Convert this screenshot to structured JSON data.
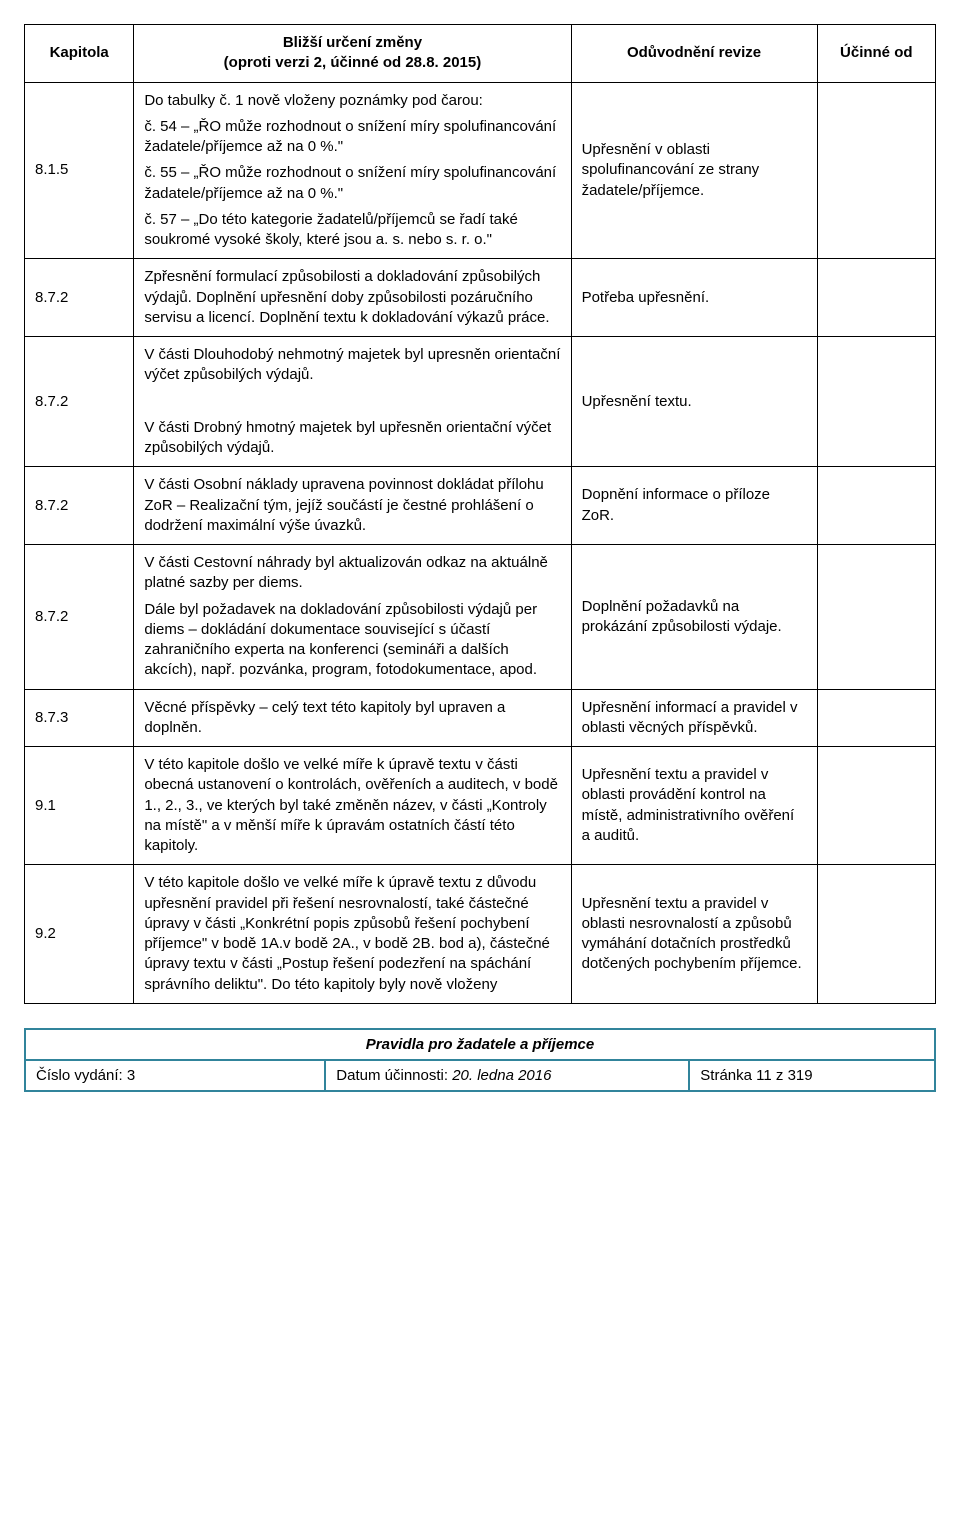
{
  "header": {
    "col1": "Kapitola",
    "col2_l1": "Bližší určení změny",
    "col2_l2": "(oproti verzi 2, účinné od 28.8. 2015)",
    "col3": "Odůvodnění revize",
    "col4": "Účinné od"
  },
  "rows": [
    {
      "kap": "8.1.5",
      "change": [
        "Do tabulky č. 1 nově vloženy poznámky pod čarou:",
        "č. 54 – „ŘO může rozhodnout o snížení míry spolufinancování žadatele/příjemce až na 0 %.\"",
        "č. 55 – „ŘO může rozhodnout o snížení míry spolufinancování žadatele/příjemce až na 0 %.\"",
        "č. 57 – „Do této kategorie žadatelů/příjemců se řadí také soukromé vysoké školy, které jsou a. s. nebo s. r. o.\""
      ],
      "reason": "Upřesnění v oblasti spolufinancování ze strany žadatele/příjemce."
    },
    {
      "kap": "8.7.2",
      "change": [
        "Zpřesnění formulací způsobilosti a dokladování způsobilých výdajů. Doplnění upřesnění doby způsobilosti pozáručního servisu a licencí. Doplnění textu k dokladování výkazů práce."
      ],
      "reason": "Potřeba upřesnění."
    },
    {
      "kap": "8.7.2",
      "change": [
        "V části Dlouhodobý nehmotný majetek byl upresněn orientační výčet způsobilých výdajů.",
        "",
        "V části Drobný hmotný majetek byl upřesněn orientační výčet způsobilých výdajů."
      ],
      "reason": "Upřesnění textu."
    },
    {
      "kap": "8.7.2",
      "change": [
        "V části Osobní náklady upravena povinnost dokládat přílohu ZoR – Realizační tým, jejíž součástí je čestné prohlášení o dodržení maximální výše úvazků."
      ],
      "reason": "Dopnění informace o příloze ZoR."
    },
    {
      "kap": "8.7.2",
      "change": [
        "V části Cestovní náhrady byl aktualizován odkaz na aktuálně platné sazby per diems.",
        "Dále byl  požadavek na dokladování způsobilosti výdajů  per diems – dokládání dokumentace související s účastí zahraničního experta na konferenci (semináři a dalších akcích), např. pozvánka, program, fotodokumentace, apod."
      ],
      "reason": "Doplnění požadavků na prokázání způsobilosti výdaje."
    },
    {
      "kap": "8.7.3",
      "change": [
        "Věcné příspěvky – celý text této kapitoly byl upraven a doplněn."
      ],
      "reason": "Upřesnění informací a pravidel v oblasti věcných příspěvků."
    },
    {
      "kap": "9.1",
      "change": [
        "V této kapitole došlo ve velké míře k úpravě textu v části obecná ustanovení o kontrolách, ověřeních a auditech, v bodě 1., 2., 3., ve kterých byl také změněn název, v části „Kontroly na místě\" a v měnší míře k úpravám ostatních částí této kapitoly."
      ],
      "reason": "Upřesnění textu a pravidel v oblasti provádění kontrol na místě, administrativního ověření a auditů."
    },
    {
      "kap": "9.2",
      "change": [
        "V této kapitole došlo ve velké míře k úpravě textu z důvodu upřesnění pravidel při řešení nesrovnalostí, také částečné úpravy v části „Konkrétní popis způsobů řešení pochybení příjemce\"  v bodě 1A.v bodě 2A., v bodě 2B. bod a), částečné úpravy textu v části „Postup řešení podezření na spáchání správního deliktu\". Do této kapitoly byly nově vloženy"
      ],
      "reason": "Upřesnění textu a pravidel v oblasti nesrovnalostí a způsobů vymáhání dotačních prostředků dotčených pochybením příjemce."
    }
  ],
  "footer": {
    "title": "Pravidla pro žadatele a příjemce",
    "issue": "Číslo vydání: 3",
    "date_label": "Datum účinnosti: ",
    "date_value": "20. ledna 2016",
    "page": "Stránka 11 z 319"
  }
}
